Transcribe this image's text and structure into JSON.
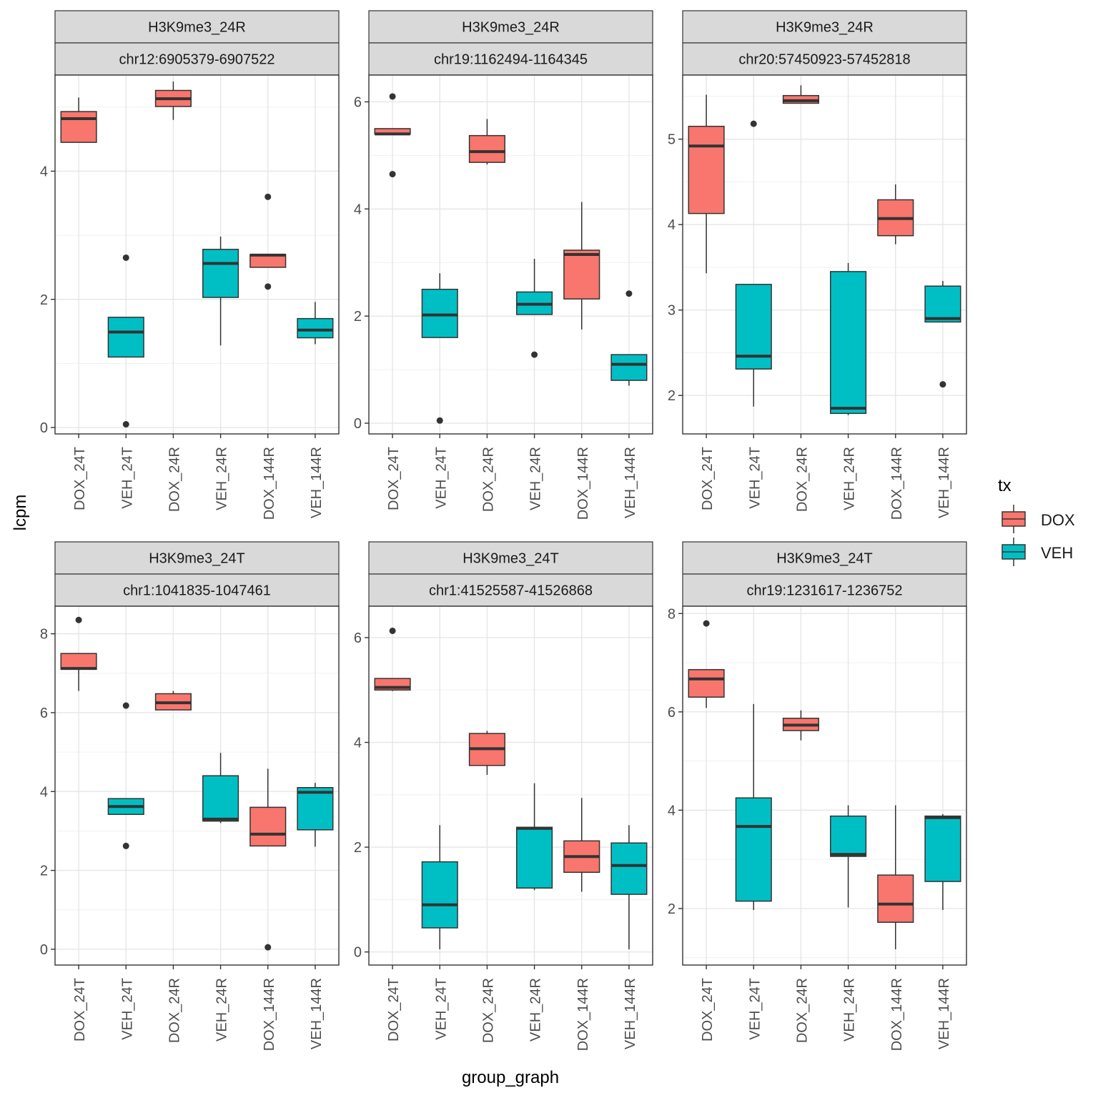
{
  "figure": {
    "ylabel": "lcpm",
    "xlabel": "group_graph",
    "legend_title": "tx",
    "legend_items": [
      {
        "label": "DOX",
        "color": "#F8766D"
      },
      {
        "label": "VEH",
        "color": "#00BFC4"
      }
    ],
    "legend_placement": "right",
    "grid": true
  },
  "chart_data": [
    {
      "type": "box",
      "strip_top": "H3K9me3_24R",
      "strip_bottom": "chr12:6905379-6907522",
      "ylim": [
        -0.1,
        5.5
      ],
      "yticks": [
        0,
        2,
        4
      ],
      "categories": [
        "DOX_24T",
        "VEH_24T",
        "DOX_24R",
        "VEH_24R",
        "DOX_144R",
        "VEH_144R"
      ],
      "boxes": [
        {
          "category": "DOX_24T",
          "tx": "DOX",
          "whisker_low": 4.45,
          "q1": 4.45,
          "median": 4.82,
          "q3": 4.93,
          "whisker_high": 5.15,
          "outliers": []
        },
        {
          "category": "VEH_24T",
          "tx": "VEH",
          "whisker_low": 1.1,
          "q1": 1.1,
          "median": 1.49,
          "q3": 1.72,
          "whisker_high": 1.72,
          "outliers": [
            2.65,
            0.05
          ]
        },
        {
          "category": "DOX_24R",
          "tx": "DOX",
          "whisker_low": 4.8,
          "q1": 5.01,
          "median": 5.13,
          "q3": 5.26,
          "whisker_high": 5.4,
          "outliers": []
        },
        {
          "category": "VEH_24R",
          "tx": "VEH",
          "whisker_low": 1.28,
          "q1": 2.03,
          "median": 2.56,
          "q3": 2.78,
          "whisker_high": 2.98,
          "outliers": []
        },
        {
          "category": "DOX_144R",
          "tx": "DOX",
          "whisker_low": 2.5,
          "q1": 2.5,
          "median": 2.69,
          "q3": 2.7,
          "whisker_high": 2.7,
          "outliers": [
            3.6,
            2.2
          ]
        },
        {
          "category": "VEH_144R",
          "tx": "VEH",
          "whisker_low": 1.3,
          "q1": 1.4,
          "median": 1.52,
          "q3": 1.7,
          "whisker_high": 1.96,
          "outliers": []
        }
      ]
    },
    {
      "type": "box",
      "strip_top": "H3K9me3_24R",
      "strip_bottom": "chr19:1162494-1164345",
      "ylim": [
        -0.2,
        6.5
      ],
      "yticks": [
        0,
        2,
        4,
        6
      ],
      "categories": [
        "DOX_24T",
        "VEH_24T",
        "DOX_24R",
        "VEH_24R",
        "DOX_144R",
        "VEH_144R"
      ],
      "boxes": [
        {
          "category": "DOX_24T",
          "tx": "DOX",
          "whisker_low": 5.4,
          "q1": 5.4,
          "median": 5.4,
          "q3": 5.5,
          "whisker_high": 5.5,
          "outliers": [
            6.1,
            4.65
          ]
        },
        {
          "category": "VEH_24T",
          "tx": "VEH",
          "whisker_low": 1.6,
          "q1": 1.6,
          "median": 2.02,
          "q3": 2.5,
          "whisker_high": 2.8,
          "outliers": [
            0.05
          ]
        },
        {
          "category": "DOX_24R",
          "tx": "DOX",
          "whisker_low": 4.83,
          "q1": 4.87,
          "median": 5.07,
          "q3": 5.37,
          "whisker_high": 5.68,
          "outliers": []
        },
        {
          "category": "VEH_24R",
          "tx": "VEH",
          "whisker_low": 2.03,
          "q1": 2.03,
          "median": 2.22,
          "q3": 2.45,
          "whisker_high": 3.07,
          "outliers": [
            1.28
          ]
        },
        {
          "category": "DOX_144R",
          "tx": "DOX",
          "whisker_low": 1.75,
          "q1": 2.32,
          "median": 3.15,
          "q3": 3.23,
          "whisker_high": 4.13,
          "outliers": []
        },
        {
          "category": "VEH_144R",
          "tx": "VEH",
          "whisker_low": 0.7,
          "q1": 0.8,
          "median": 1.1,
          "q3": 1.28,
          "whisker_high": 1.28,
          "outliers": [
            2.42
          ]
        }
      ]
    },
    {
      "type": "box",
      "strip_top": "H3K9me3_24R",
      "strip_bottom": "chr20:57450923-57452818",
      "ylim": [
        1.55,
        5.75
      ],
      "yticks": [
        2,
        3,
        4,
        5
      ],
      "categories": [
        "DOX_24T",
        "VEH_24T",
        "DOX_24R",
        "VEH_24R",
        "DOX_144R",
        "VEH_144R"
      ],
      "boxes": [
        {
          "category": "DOX_24T",
          "tx": "DOX",
          "whisker_low": 3.43,
          "q1": 4.13,
          "median": 4.92,
          "q3": 5.15,
          "whisker_high": 5.52,
          "outliers": []
        },
        {
          "category": "VEH_24T",
          "tx": "VEH",
          "whisker_low": 1.87,
          "q1": 2.31,
          "median": 2.46,
          "q3": 3.3,
          "whisker_high": 3.3,
          "outliers": [
            5.18
          ]
        },
        {
          "category": "DOX_24R",
          "tx": "DOX",
          "whisker_low": 5.42,
          "q1": 5.42,
          "median": 5.45,
          "q3": 5.51,
          "whisker_high": 5.63,
          "outliers": []
        },
        {
          "category": "VEH_24R",
          "tx": "VEH",
          "whisker_low": 1.77,
          "q1": 1.79,
          "median": 1.85,
          "q3": 3.45,
          "whisker_high": 3.55,
          "outliers": []
        },
        {
          "category": "DOX_144R",
          "tx": "DOX",
          "whisker_low": 3.77,
          "q1": 3.87,
          "median": 4.07,
          "q3": 4.29,
          "whisker_high": 4.47,
          "outliers": []
        },
        {
          "category": "VEH_144R",
          "tx": "VEH",
          "whisker_low": 2.86,
          "q1": 2.86,
          "median": 2.9,
          "q3": 3.28,
          "whisker_high": 3.34,
          "outliers": [
            2.13
          ]
        }
      ]
    },
    {
      "type": "box",
      "strip_top": "H3K9me3_24T",
      "strip_bottom": "chr1:1041835-1047461",
      "ylim": [
        -0.4,
        8.7
      ],
      "yticks": [
        0,
        2,
        4,
        6,
        8
      ],
      "categories": [
        "DOX_24T",
        "VEH_24T",
        "DOX_24R",
        "VEH_24R",
        "DOX_144R",
        "VEH_144R"
      ],
      "boxes": [
        {
          "category": "DOX_24T",
          "tx": "DOX",
          "whisker_low": 6.55,
          "q1": 7.1,
          "median": 7.12,
          "q3": 7.5,
          "whisker_high": 7.5,
          "outliers": [
            8.35
          ]
        },
        {
          "category": "VEH_24T",
          "tx": "VEH",
          "whisker_low": 3.42,
          "q1": 3.42,
          "median": 3.62,
          "q3": 3.82,
          "whisker_high": 3.82,
          "outliers": [
            6.18,
            2.62
          ]
        },
        {
          "category": "DOX_24R",
          "tx": "DOX",
          "whisker_low": 6.07,
          "q1": 6.07,
          "median": 6.25,
          "q3": 6.48,
          "whisker_high": 6.55,
          "outliers": []
        },
        {
          "category": "VEH_24R",
          "tx": "VEH",
          "whisker_low": 3.2,
          "q1": 3.25,
          "median": 3.3,
          "q3": 4.4,
          "whisker_high": 4.98,
          "outliers": []
        },
        {
          "category": "DOX_144R",
          "tx": "DOX",
          "whisker_low": 2.62,
          "q1": 2.62,
          "median": 2.92,
          "q3": 3.6,
          "whisker_high": 4.58,
          "outliers": [
            0.05
          ]
        },
        {
          "category": "VEH_144R",
          "tx": "VEH",
          "whisker_low": 2.6,
          "q1": 3.03,
          "median": 3.98,
          "q3": 4.1,
          "whisker_high": 4.22,
          "outliers": []
        }
      ]
    },
    {
      "type": "box",
      "strip_top": "H3K9me3_24T",
      "strip_bottom": "chr1:41525587-41526868",
      "ylim": [
        -0.25,
        6.6
      ],
      "yticks": [
        0,
        2,
        4,
        6
      ],
      "categories": [
        "DOX_24T",
        "VEH_24T",
        "DOX_24R",
        "VEH_24R",
        "DOX_144R",
        "VEH_144R"
      ],
      "boxes": [
        {
          "category": "DOX_24T",
          "tx": "DOX",
          "whisker_low": 4.98,
          "q1": 5.0,
          "median": 5.05,
          "q3": 5.22,
          "whisker_high": 5.22,
          "outliers": [
            6.13
          ]
        },
        {
          "category": "VEH_24T",
          "tx": "VEH",
          "whisker_low": 0.05,
          "q1": 0.46,
          "median": 0.9,
          "q3": 1.72,
          "whisker_high": 2.42,
          "outliers": []
        },
        {
          "category": "DOX_24R",
          "tx": "DOX",
          "whisker_low": 3.38,
          "q1": 3.56,
          "median": 3.88,
          "q3": 4.17,
          "whisker_high": 4.22,
          "outliers": []
        },
        {
          "category": "VEH_24R",
          "tx": "VEH",
          "whisker_low": 1.18,
          "q1": 1.22,
          "median": 2.36,
          "q3": 2.38,
          "whisker_high": 3.22,
          "outliers": []
        },
        {
          "category": "DOX_144R",
          "tx": "DOX",
          "whisker_low": 1.15,
          "q1": 1.52,
          "median": 1.82,
          "q3": 2.12,
          "whisker_high": 2.94,
          "outliers": []
        },
        {
          "category": "VEH_144R",
          "tx": "VEH",
          "whisker_low": 0.05,
          "q1": 1.1,
          "median": 1.65,
          "q3": 2.08,
          "whisker_high": 2.42,
          "outliers": []
        }
      ]
    },
    {
      "type": "box",
      "strip_top": "H3K9me3_24T",
      "strip_bottom": "chr19:1231617-1236752",
      "ylim": [
        0.85,
        8.15
      ],
      "yticks": [
        2,
        4,
        6,
        8
      ],
      "categories": [
        "DOX_24T",
        "VEH_24T",
        "DOX_24R",
        "VEH_24R",
        "DOX_144R",
        "VEH_144R"
      ],
      "boxes": [
        {
          "category": "DOX_24T",
          "tx": "DOX",
          "whisker_low": 6.08,
          "q1": 6.3,
          "median": 6.67,
          "q3": 6.86,
          "whisker_high": 6.86,
          "outliers": [
            7.8
          ]
        },
        {
          "category": "VEH_24T",
          "tx": "VEH",
          "whisker_low": 1.97,
          "q1": 2.15,
          "median": 3.67,
          "q3": 4.25,
          "whisker_high": 6.16,
          "outliers": []
        },
        {
          "category": "DOX_24R",
          "tx": "DOX",
          "whisker_low": 5.42,
          "q1": 5.62,
          "median": 5.73,
          "q3": 5.87,
          "whisker_high": 6.03,
          "outliers": []
        },
        {
          "category": "VEH_24R",
          "tx": "VEH",
          "whisker_low": 2.02,
          "q1": 3.06,
          "median": 3.1,
          "q3": 3.88,
          "whisker_high": 4.1,
          "outliers": []
        },
        {
          "category": "DOX_144R",
          "tx": "DOX",
          "whisker_low": 1.17,
          "q1": 1.72,
          "median": 2.09,
          "q3": 2.68,
          "whisker_high": 4.1,
          "outliers": []
        },
        {
          "category": "VEH_144R",
          "tx": "VEH",
          "whisker_low": 1.97,
          "q1": 2.55,
          "median": 3.85,
          "q3": 3.88,
          "whisker_high": 3.92,
          "outliers": []
        }
      ]
    }
  ]
}
